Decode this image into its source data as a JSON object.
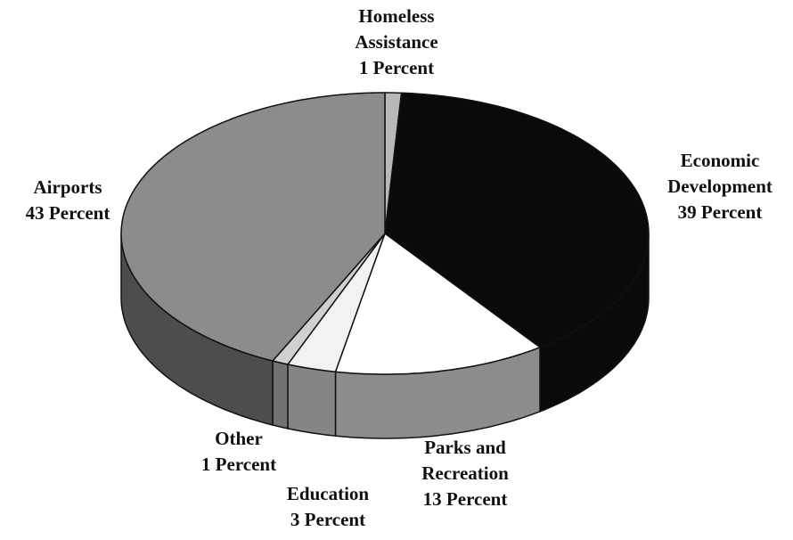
{
  "chart_data": {
    "type": "pie",
    "categories": [
      "Homeless Assistance",
      "Economic Development",
      "Parks and Recreation",
      "Education",
      "Other",
      "Airports"
    ],
    "values": [
      1,
      39,
      13,
      3,
      1,
      43
    ],
    "value_labels": [
      "1 Percent",
      "39 Percent",
      "13 Percent",
      "3 Percent",
      "1 Percent",
      "43 Percent"
    ],
    "colors": [
      "#b8b8b8",
      "#0a0a0a",
      "#ffffff",
      "#f2f2f2",
      "#d0d0d0",
      "#8c8c8c"
    ]
  }
}
